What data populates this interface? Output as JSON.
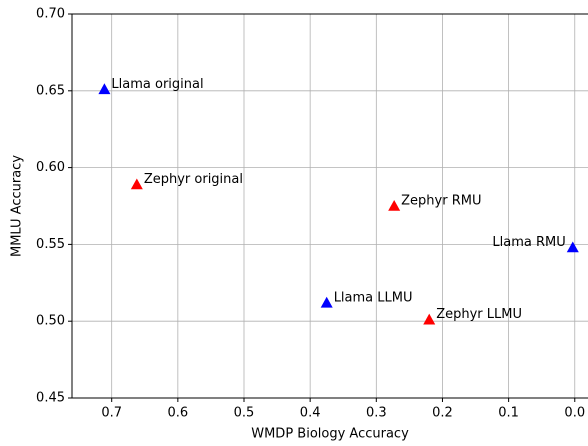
{
  "chart_data": {
    "type": "scatter",
    "xlabel": "WMDP Biology Accuracy",
    "ylabel": "MMLU Accuracy",
    "labels": [
      "Llama original",
      "Zephyr original",
      "Zephyr RMU",
      "Llama RMU",
      "Llama LLMU",
      "Zephyr LLMU"
    ],
    "x": [
      0.711,
      0.662,
      0.273,
      0.003,
      0.375,
      0.22
    ],
    "values": [
      0.651,
      0.589,
      0.575,
      0.548,
      0.512,
      0.501
    ],
    "colors": [
      "#0000ff",
      "#ff0000",
      "#ff0000",
      "#0000ff",
      "#0000ff",
      "#ff0000"
    ],
    "xlim": [
      0.76,
      -0.02
    ],
    "xticks": [
      0.7,
      0.6,
      0.5,
      0.4,
      0.3,
      0.2,
      0.1,
      {
        "value": 0.0,
        "label": "0.0"
      }
    ],
    "ylim": [
      0.45,
      0.7
    ],
    "yticks": [
      0.45,
      {
        "value": 0.5,
        "label": "0.50"
      },
      0.55,
      {
        "value": 0.6,
        "label": "0.60"
      },
      0.65,
      {
        "value": 0.7,
        "label": "0.70"
      }
    ],
    "grid": true
  }
}
